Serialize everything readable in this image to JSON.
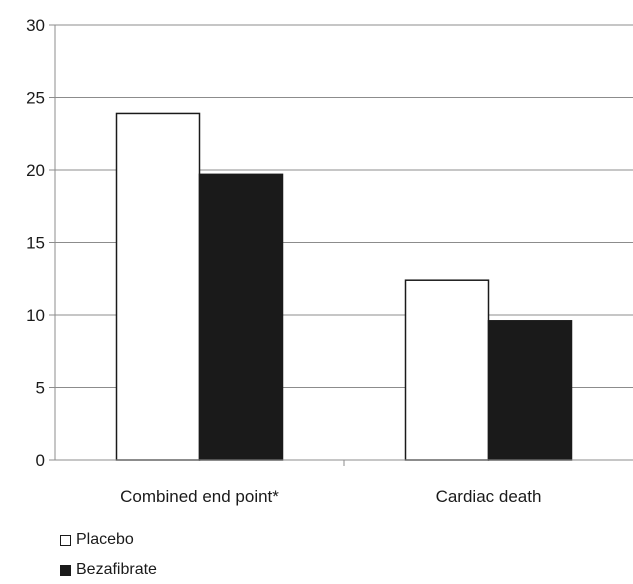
{
  "chart_data": {
    "type": "bar",
    "categories": [
      "Combined end point*",
      "Cardiac death"
    ],
    "series": [
      {
        "name": "Placebo",
        "values": [
          23.9,
          12.4
        ],
        "color": "#ffffff"
      },
      {
        "name": "Bezafibrate",
        "values": [
          19.7,
          9.6
        ],
        "color": "#1a1a1a"
      }
    ],
    "yticks": [
      "0",
      "5",
      "10",
      "15",
      "20",
      "25",
      "30"
    ],
    "ylim": [
      0,
      30
    ],
    "grid": true,
    "legend": "bottom-left"
  }
}
